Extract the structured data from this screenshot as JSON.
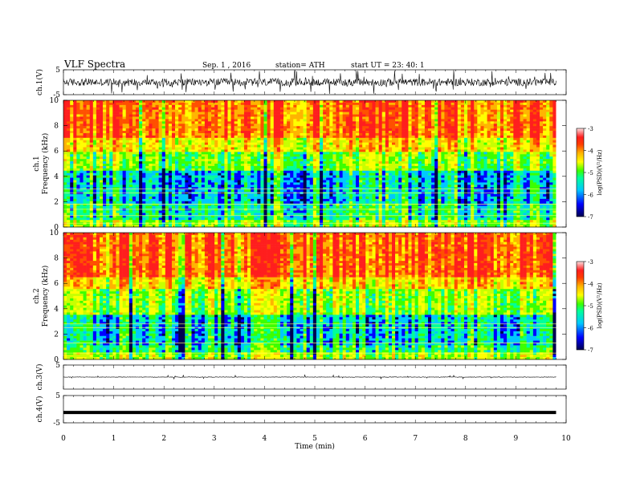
{
  "header": {
    "title": "VLF  Spectra",
    "date": "Sep. 1  , 2016",
    "station": "station= ATH",
    "start": "start  UT  =    23: 40: 1"
  },
  "chart_data": [
    {
      "type": "line",
      "id": "ch1-wave",
      "ylabel": "ch.1(V)",
      "ylim": [
        -5,
        5
      ],
      "y_tick_labels": [
        "5",
        "-5"
      ],
      "xlim": [
        0,
        10
      ],
      "data_extent_min": 9.8,
      "description_values": {
        "baseline": 0,
        "typical_amplitude": 1.5
      }
    },
    {
      "type": "heatmap",
      "id": "ch1-spectrogram",
      "ylabel_channel": "ch.1",
      "ylabel": "Frequency  (kHz)",
      "ylim": [
        0,
        10
      ],
      "y_tick_labels": [
        "0",
        "2",
        "4",
        "6",
        "8",
        "10"
      ],
      "xlim": [
        0,
        10
      ],
      "colorbar": {
        "label": "log(PSD)(V²/Hz)",
        "range": [
          -7,
          -3
        ],
        "tick_labels": [
          "-3",
          "-4",
          "-5",
          "-6",
          "-7"
        ]
      },
      "bands_khz": {
        "red_above": 6,
        "yellow_green": [
          4.5,
          6
        ],
        "blue_dark": [
          1.8,
          5.5
        ],
        "lines": [
          0.3,
          0.9,
          1.4,
          1.8,
          2.7,
          3.0
        ]
      }
    },
    {
      "type": "heatmap",
      "id": "ch2-spectrogram",
      "ylabel_channel": "ch.2",
      "ylabel": "Frequency  (kHz)",
      "ylim": [
        0,
        10
      ],
      "y_tick_labels": [
        "0",
        "2",
        "4",
        "6",
        "8",
        "10"
      ],
      "xlim": [
        0,
        10
      ],
      "colorbar": {
        "label": "log(PSD)(V²/Hz)",
        "range": [
          -7,
          -3
        ],
        "tick_labels": [
          "-3",
          "-4",
          "-5",
          "-6",
          "-7"
        ]
      },
      "bands_khz": {
        "red_above": 5.5,
        "yellow_green": [
          3.5,
          5.5
        ],
        "blue_dark": [
          1.2,
          3.5
        ],
        "lines": [
          0.5,
          1.3,
          2.5,
          2.8
        ]
      }
    },
    {
      "type": "line",
      "id": "ch3-wave",
      "ylabel": "ch.3(V)",
      "ylim": [
        -5,
        5
      ],
      "y_tick_labels": [
        "5"
      ],
      "xlim": [
        0,
        10
      ],
      "description_values": {
        "baseline": 0,
        "typical_amplitude": 0.1
      }
    },
    {
      "type": "line",
      "id": "ch4-wave",
      "ylabel": "ch.4(V)",
      "ylim": [
        -5,
        5
      ],
      "y_tick_labels": [
        "5",
        "-5"
      ],
      "xlim": [
        0,
        10
      ],
      "description_values": {
        "baseline": -1.2,
        "typical_amplitude": 0
      }
    }
  ],
  "x_axis": {
    "label": "Time  (min)",
    "tick_labels": [
      "0",
      "1",
      "2",
      "3",
      "4",
      "5",
      "6",
      "7",
      "8",
      "9",
      "10"
    ]
  },
  "colors": {
    "spectrum_stops": [
      "#000050",
      "#0000ff",
      "#00c8ff",
      "#00ff9a",
      "#3cff00",
      "#c8ff00",
      "#ffff00",
      "#ffb400",
      "#ff5000",
      "#ff1e1e"
    ],
    "colorbar_top": "#ffffff"
  }
}
